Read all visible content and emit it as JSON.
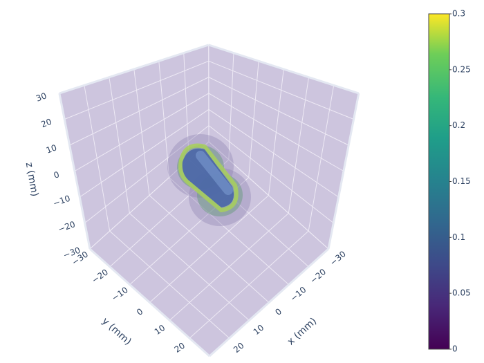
{
  "chart_data": {
    "type": "volume",
    "xaxis": {
      "title": "x (mm)",
      "lim": [
        -30,
        30
      ],
      "ticks": [
        {
          "value": -30,
          "label": "−30"
        },
        {
          "value": -20,
          "label": "−20"
        },
        {
          "value": -10,
          "label": "−10"
        },
        0,
        10,
        20
      ]
    },
    "yaxis": {
      "title": "y (mm)",
      "lim": [
        -30,
        30
      ],
      "ticks": [
        {
          "value": -30,
          "label": "−30"
        },
        {
          "value": -20,
          "label": "−20"
        },
        {
          "value": -10,
          "label": "−10"
        },
        0,
        10,
        20
      ]
    },
    "zaxis": {
      "title": "z (mm)",
      "lim": [
        -30,
        30
      ],
      "ticks": [
        {
          "value": -30,
          "label": "−30"
        },
        {
          "value": -20,
          "label": "−20"
        },
        {
          "value": -10,
          "label": "−10"
        },
        0,
        10,
        20,
        30
      ]
    },
    "colorbar": {
      "lim": [
        0,
        0.3
      ],
      "ticks": [
        0,
        0.05,
        0.1,
        0.15,
        0.2,
        0.25,
        0.3
      ],
      "colorscale": "viridis"
    }
  }
}
